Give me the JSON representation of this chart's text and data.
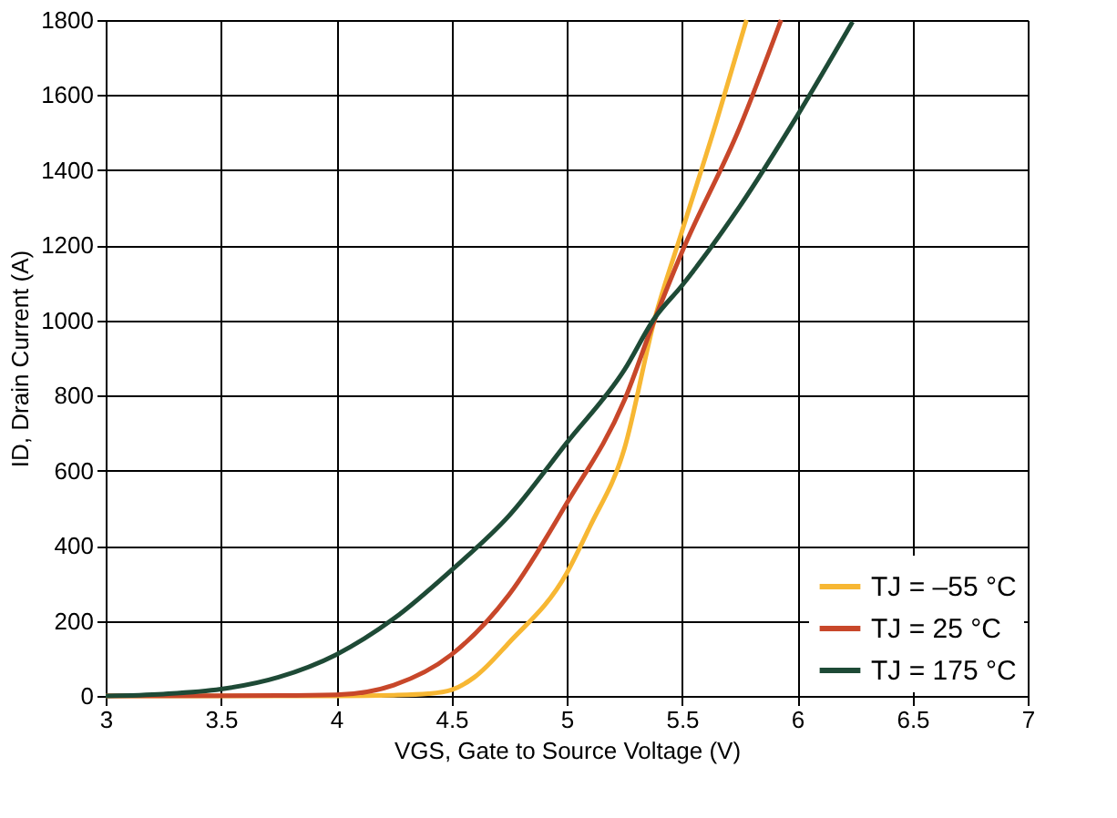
{
  "chart_data": {
    "type": "line",
    "xlabel": "VGS, Gate to Source Voltage (V)",
    "ylabel": "ID, Drain Current (A)",
    "xlim": [
      3,
      7
    ],
    "xticks": [
      3,
      3.5,
      4,
      4.5,
      5,
      5.5,
      6,
      6.5,
      7
    ],
    "ylim": [
      0,
      1800
    ],
    "yticks": [
      0,
      200,
      400,
      600,
      800,
      1000,
      1200,
      1400,
      1600,
      1800
    ],
    "grid": true,
    "legend": "bottom right",
    "line_style": "solid",
    "series": [
      {
        "name": "TJ = –55 °C",
        "color": "#f7b733",
        "x": [
          3,
          4,
          4.25,
          4.4,
          4.5,
          4.6,
          4.75,
          5,
          5.1,
          5.25,
          5.38,
          5.5,
          5.65,
          5.78
        ],
        "values": [
          0,
          0,
          2,
          6,
          16,
          50,
          142,
          327,
          450,
          658,
          1000,
          1237,
          1530,
          1800
        ]
      },
      {
        "name": "TJ = 25 °C",
        "color": "#c8472a",
        "x": [
          3,
          3.75,
          4,
          4.25,
          4.5,
          4.75,
          5,
          5.25,
          5.38,
          5.5,
          5.75,
          5.93
        ],
        "values": [
          0,
          1,
          3,
          29,
          110,
          270,
          513,
          787,
          1000,
          1182,
          1513,
          1800
        ]
      },
      {
        "name": "TJ = 175 °C",
        "color": "#1e4a36",
        "x": [
          3,
          3.25,
          3.5,
          3.75,
          4,
          4.25,
          4.5,
          4.75,
          5,
          5.25,
          5.38,
          5.5,
          5.75,
          6,
          6.24
        ],
        "values": [
          0,
          5,
          18,
          50,
          110,
          206,
          335,
          480,
          674,
          868,
          1005,
          1093,
          1303,
          1545,
          1795
        ]
      }
    ]
  }
}
